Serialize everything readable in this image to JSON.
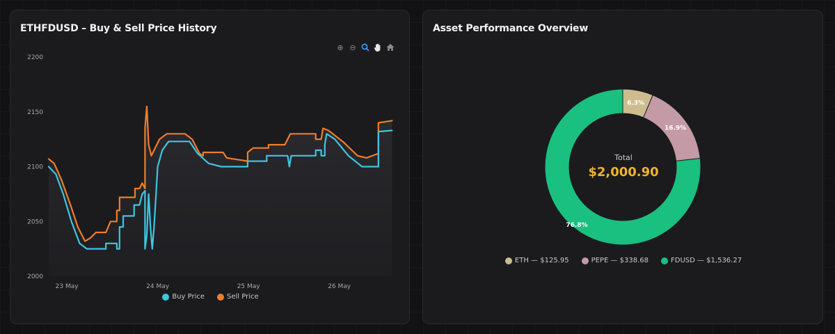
{
  "left_panel": {
    "title": "ETHFDUSD – Buy & Sell Price History",
    "toolbar": [
      {
        "name": "zoom-in-icon",
        "glyph": "⊕"
      },
      {
        "name": "zoom-out-icon",
        "glyph": "⊖"
      },
      {
        "name": "zoom-select-icon",
        "glyph": "🔍"
      },
      {
        "name": "pan-hand-icon",
        "glyph": "✋"
      },
      {
        "name": "reset-home-icon",
        "glyph": "⌂"
      }
    ]
  },
  "right_panel": {
    "title": "Asset Performance Overview",
    "total_label": "Total",
    "total_value": "$2,000.90"
  },
  "chart_data": [
    {
      "type": "line",
      "title": "ETHFDUSD – Buy & Sell Price History",
      "ylim": [
        2000,
        2200
      ],
      "y_ticks": [
        "2200",
        "2150",
        "2100",
        "2050",
        "2000"
      ],
      "x_ticks": [
        "23 May",
        "24 May",
        "25 May",
        "26 May"
      ],
      "x_range_days": [
        22.8,
        26.6
      ],
      "legend_position": "bottom-center",
      "series": [
        {
          "name": "Buy Price",
          "color": "#3ec6e0",
          "points": [
            [
              22.8,
              2100
            ],
            [
              22.88,
              2093
            ],
            [
              22.96,
              2075
            ],
            [
              23.05,
              2050
            ],
            [
              23.14,
              2030
            ],
            [
              23.22,
              2025
            ],
            [
              23.26,
              2025
            ],
            [
              23.43,
              2025
            ],
            [
              23.43,
              2030
            ],
            [
              23.55,
              2030
            ],
            [
              23.55,
              2025
            ],
            [
              23.58,
              2025
            ],
            [
              23.58,
              2045
            ],
            [
              23.62,
              2045
            ],
            [
              23.62,
              2055
            ],
            [
              23.74,
              2055
            ],
            [
              23.74,
              2065
            ],
            [
              23.8,
              2065
            ],
            [
              23.83,
              2075
            ],
            [
              23.86,
              2078
            ],
            [
              23.86,
              2025
            ],
            [
              23.88,
              2038
            ],
            [
              23.9,
              2075
            ],
            [
              23.92,
              2045
            ],
            [
              23.94,
              2025
            ],
            [
              23.96,
              2045
            ],
            [
              24.0,
              2100
            ],
            [
              24.05,
              2115
            ],
            [
              24.12,
              2123
            ],
            [
              24.35,
              2123
            ],
            [
              24.44,
              2112
            ],
            [
              24.56,
              2103
            ],
            [
              24.7,
              2100
            ],
            [
              24.99,
              2100
            ],
            [
              24.99,
              2105
            ],
            [
              25.2,
              2105
            ],
            [
              25.2,
              2110
            ],
            [
              25.43,
              2110
            ],
            [
              25.45,
              2100
            ],
            [
              25.47,
              2110
            ],
            [
              25.74,
              2110
            ],
            [
              25.74,
              2115
            ],
            [
              25.8,
              2115
            ],
            [
              25.8,
              2110
            ],
            [
              25.84,
              2110
            ],
            [
              25.84,
              2120
            ],
            [
              25.86,
              2130
            ],
            [
              25.95,
              2125
            ],
            [
              26.1,
              2110
            ],
            [
              26.25,
              2100
            ],
            [
              26.43,
              2100
            ],
            [
              26.43,
              2132
            ],
            [
              26.58,
              2133
            ]
          ]
        },
        {
          "name": "Sell Price",
          "color": "#f07d2a",
          "points": [
            [
              22.8,
              2107
            ],
            [
              22.86,
              2103
            ],
            [
              22.94,
              2088
            ],
            [
              23.04,
              2065
            ],
            [
              23.12,
              2045
            ],
            [
              23.2,
              2032
            ],
            [
              23.26,
              2035
            ],
            [
              23.32,
              2040
            ],
            [
              23.43,
              2040
            ],
            [
              23.48,
              2050
            ],
            [
              23.55,
              2050
            ],
            [
              23.55,
              2060
            ],
            [
              23.58,
              2060
            ],
            [
              23.58,
              2072
            ],
            [
              23.75,
              2072
            ],
            [
              23.75,
              2080
            ],
            [
              23.8,
              2080
            ],
            [
              23.83,
              2085
            ],
            [
              23.86,
              2080
            ],
            [
              23.86,
              2135
            ],
            [
              23.88,
              2155
            ],
            [
              23.9,
              2120
            ],
            [
              23.93,
              2110
            ],
            [
              23.96,
              2115
            ],
            [
              24.02,
              2125
            ],
            [
              24.1,
              2130
            ],
            [
              24.3,
              2130
            ],
            [
              24.38,
              2125
            ],
            [
              24.46,
              2112
            ],
            [
              24.5,
              2110
            ],
            [
              24.5,
              2113
            ],
            [
              24.72,
              2113
            ],
            [
              24.76,
              2108
            ],
            [
              24.99,
              2105
            ],
            [
              24.99,
              2113
            ],
            [
              25.05,
              2117
            ],
            [
              25.22,
              2117
            ],
            [
              25.22,
              2120
            ],
            [
              25.4,
              2120
            ],
            [
              25.43,
              2125
            ],
            [
              25.46,
              2130
            ],
            [
              25.74,
              2130
            ],
            [
              25.74,
              2125
            ],
            [
              25.8,
              2125
            ],
            [
              25.82,
              2135
            ],
            [
              25.88,
              2133
            ],
            [
              26.05,
              2122
            ],
            [
              26.2,
              2110
            ],
            [
              26.3,
              2108
            ],
            [
              26.43,
              2112
            ],
            [
              26.43,
              2140
            ],
            [
              26.58,
              2142
            ]
          ]
        }
      ]
    },
    {
      "type": "pie",
      "title": "Asset Performance Overview",
      "legend_position": "bottom-center",
      "slices": [
        {
          "name": "ETH",
          "label": "ETH — $125.95",
          "value": 125.95,
          "percent_label": "6.3%",
          "color": "#cdbd8e"
        },
        {
          "name": "PEPE",
          "label": "PEPE — $338.68",
          "value": 338.68,
          "percent_label": "16.9%",
          "color": "#c49aa6"
        },
        {
          "name": "FDUSD",
          "label": "FDUSD — $1,536.27",
          "value": 1536.27,
          "percent_label": "76.8%",
          "color": "#19c07f"
        }
      ]
    }
  ]
}
